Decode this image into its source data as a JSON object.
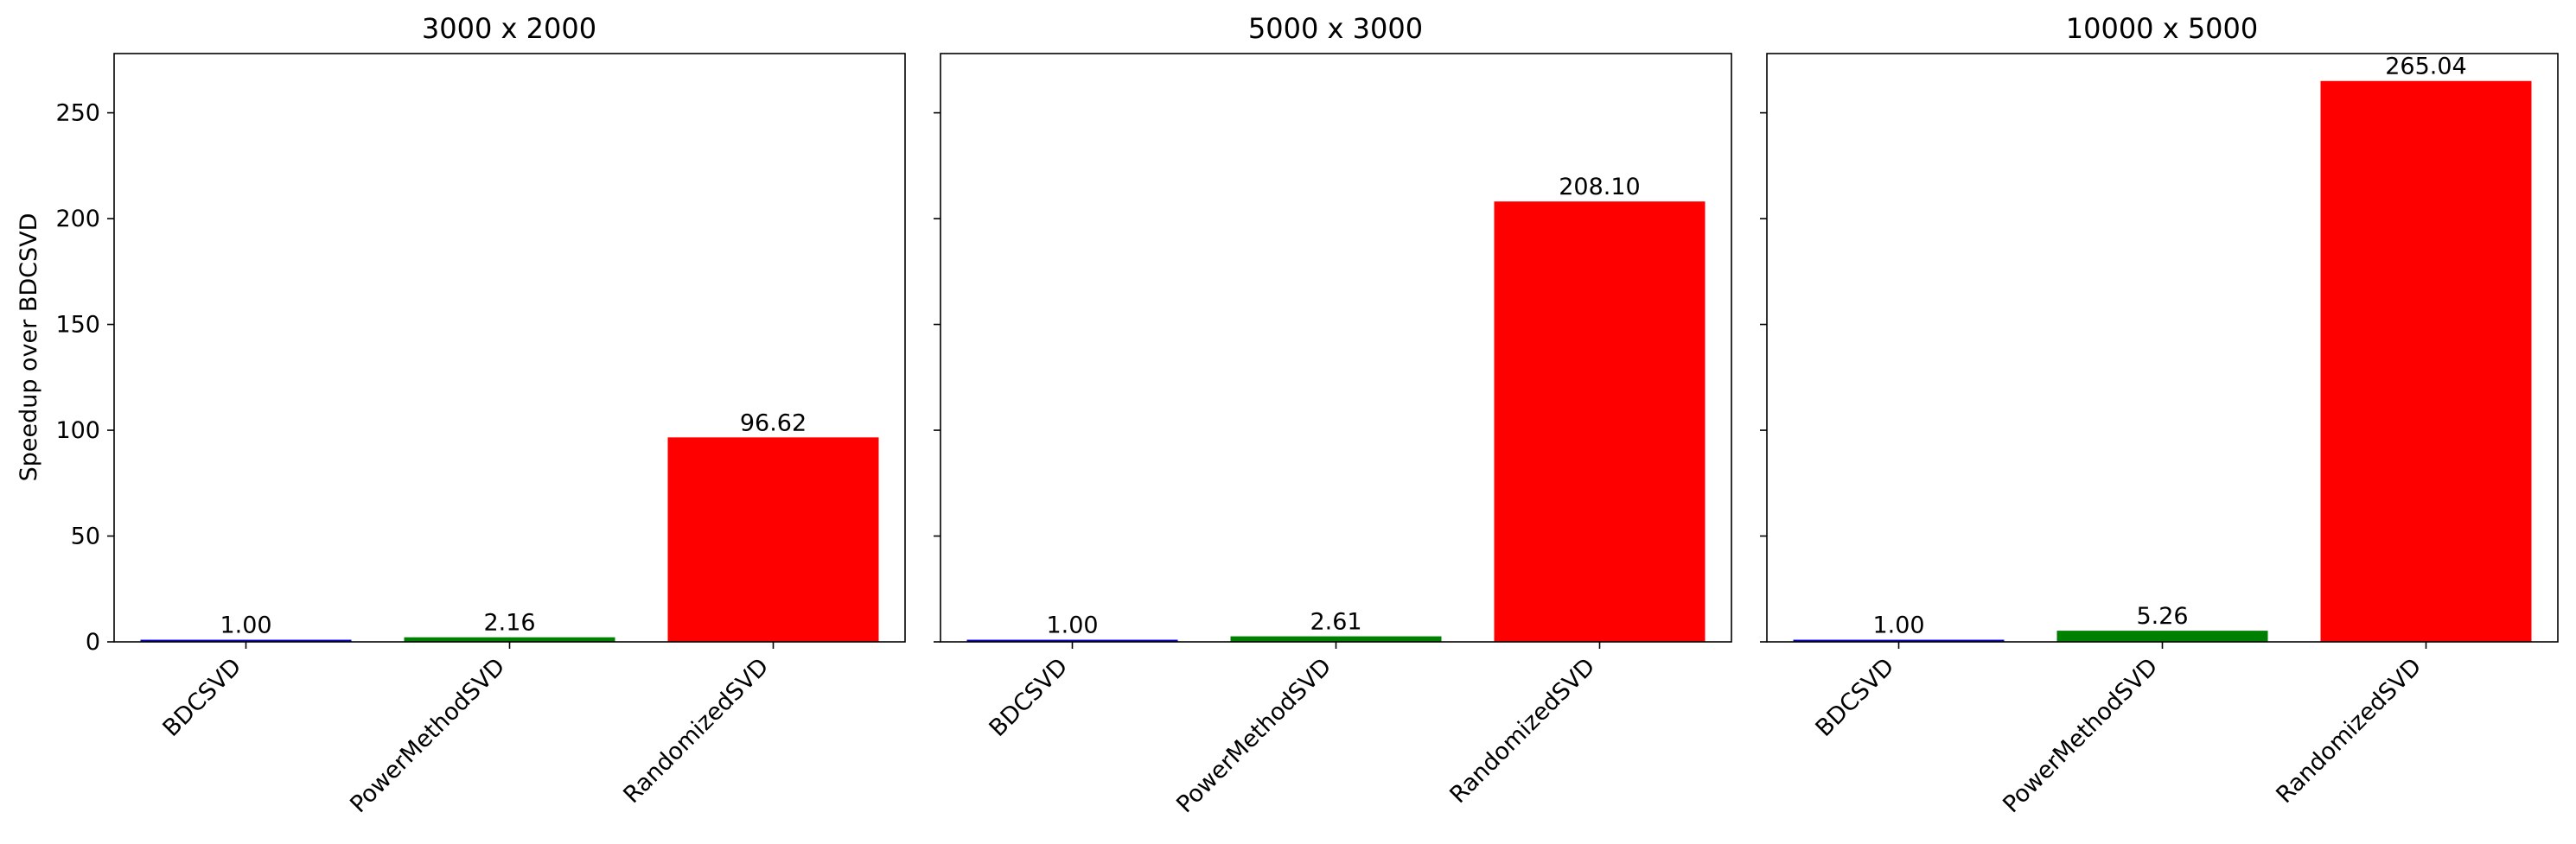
{
  "chart_data": [
    {
      "type": "bar",
      "title": "3000 x 2000",
      "categories": [
        "BDCSVD",
        "PowerMethodSVD",
        "RandomizedSVD"
      ],
      "values": [
        1.0,
        2.16,
        96.62
      ],
      "value_labels": [
        "1.00",
        "2.16",
        "96.62"
      ],
      "colors": [
        "#0000cc",
        "#008000",
        "#ff0000"
      ],
      "ylabel": "Speedup over BDCSVD",
      "ylim": [
        0,
        278
      ],
      "yticks": [
        0,
        50,
        100,
        150,
        200,
        250
      ],
      "ytick_labels": [
        "0",
        "50",
        "100",
        "150",
        "200",
        "250"
      ],
      "grid": false
    },
    {
      "type": "bar",
      "title": "5000 x 3000",
      "categories": [
        "BDCSVD",
        "PowerMethodSVD",
        "RandomizedSVD"
      ],
      "values": [
        1.0,
        2.61,
        208.1
      ],
      "value_labels": [
        "1.00",
        "2.61",
        "208.10"
      ],
      "colors": [
        "#0000cc",
        "#008000",
        "#ff0000"
      ],
      "ylim": [
        0,
        278
      ],
      "yticks": [
        0,
        50,
        100,
        150,
        200,
        250
      ],
      "grid": false
    },
    {
      "type": "bar",
      "title": "10000 x 5000",
      "categories": [
        "BDCSVD",
        "PowerMethodSVD",
        "RandomizedSVD"
      ],
      "values": [
        1.0,
        5.26,
        265.04
      ],
      "value_labels": [
        "1.00",
        "5.26",
        "265.04"
      ],
      "colors": [
        "#0000cc",
        "#008000",
        "#ff0000"
      ],
      "ylim": [
        0,
        278
      ],
      "yticks": [
        0,
        50,
        100,
        150,
        200,
        250
      ],
      "grid": false
    }
  ]
}
